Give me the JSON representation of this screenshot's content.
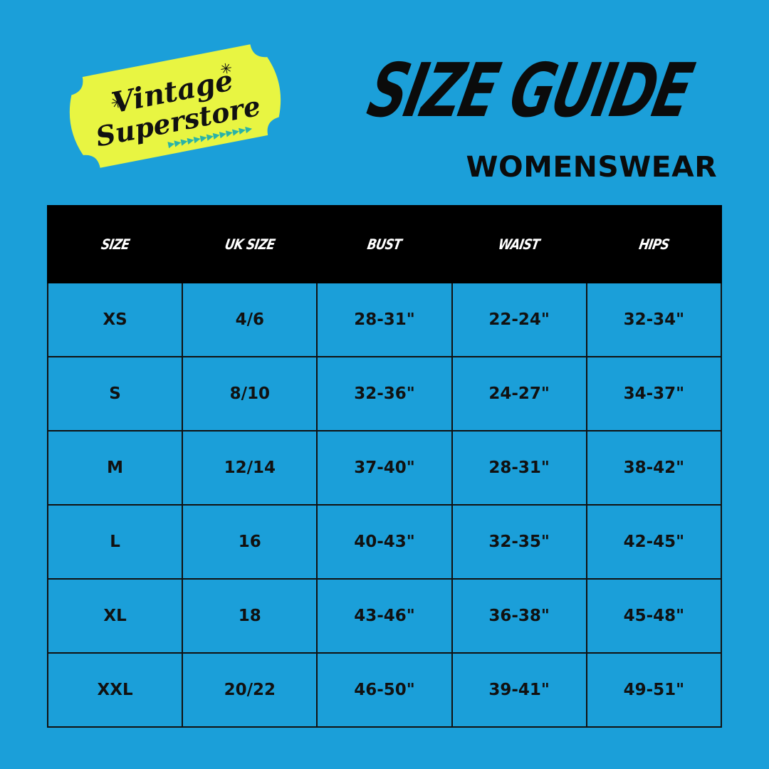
{
  "logo": {
    "text_line1": "Vintage",
    "text_line2": "Superstore",
    "color": "#e8f542",
    "accent": "#2ab3a7"
  },
  "title": "SIZE GUIDE",
  "subtitle": "WOMENSWEAR",
  "colors": {
    "background": "#1b9fd9",
    "header": "#000000",
    "text": "#0b0b0b"
  },
  "table": {
    "headers": [
      "SIZE",
      "UK SIZE",
      "BUST",
      "WAIST",
      "HIPS"
    ],
    "rows": [
      [
        "XS",
        "4/6",
        "28-31\"",
        "22-24\"",
        "32-34\""
      ],
      [
        "S",
        "8/10",
        "32-36\"",
        "24-27\"",
        "34-37\""
      ],
      [
        "M",
        "12/14",
        "37-40\"",
        "28-31\"",
        "38-42\""
      ],
      [
        "L",
        "16",
        "40-43\"",
        "32-35\"",
        "42-45\""
      ],
      [
        "XL",
        "18",
        "43-46\"",
        "36-38\"",
        "45-48\""
      ],
      [
        "XXL",
        "20/22",
        "46-50\"",
        "39-41\"",
        "49-51\""
      ]
    ]
  }
}
